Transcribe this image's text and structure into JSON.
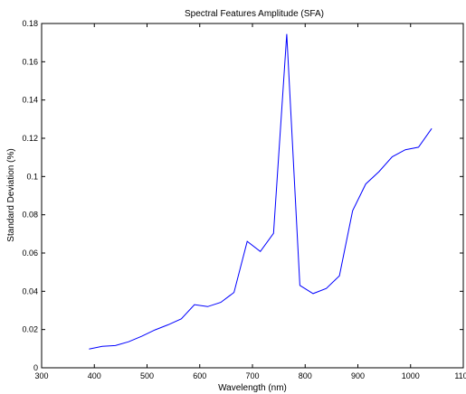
{
  "chart_data": {
    "type": "line",
    "title": "Spectral Features Amplitude (SFA)",
    "xlabel": "Wavelength (nm)",
    "ylabel": "Standard Deviation (%)",
    "xlim": [
      300,
      1100
    ],
    "ylim": [
      0,
      0.18
    ],
    "xticks": [
      300,
      400,
      500,
      600,
      700,
      800,
      900,
      1000,
      1100
    ],
    "xtick_labels": [
      "300",
      "400",
      "500",
      "600",
      "700",
      "800",
      "900",
      "1000",
      "1100"
    ],
    "yticks": [
      0,
      0.02,
      0.04,
      0.06,
      0.08,
      0.1,
      0.12,
      0.14,
      0.16,
      0.18
    ],
    "ytick_labels": [
      "0",
      "0.02",
      "0.04",
      "0.06",
      "0.08",
      "0.1",
      "0.12",
      "0.14",
      "0.16",
      "0.18"
    ],
    "grid": false,
    "series": [
      {
        "color": "#0000ff",
        "x": [
          390,
          415,
          440,
          465,
          490,
          515,
          540,
          565,
          590,
          615,
          640,
          665,
          690,
          715,
          740,
          765,
          790,
          815,
          840,
          865,
          890,
          915,
          940,
          965,
          990,
          1015,
          1040
        ],
        "y": [
          0.0098,
          0.0112,
          0.0116,
          0.0136,
          0.0165,
          0.0198,
          0.0225,
          0.0256,
          0.033,
          0.032,
          0.0342,
          0.0394,
          0.0661,
          0.0608,
          0.0703,
          0.1745,
          0.0431,
          0.0388,
          0.0415,
          0.0481,
          0.0821,
          0.0961,
          0.1025,
          0.1103,
          0.114,
          0.1153,
          0.1251
        ]
      }
    ]
  }
}
